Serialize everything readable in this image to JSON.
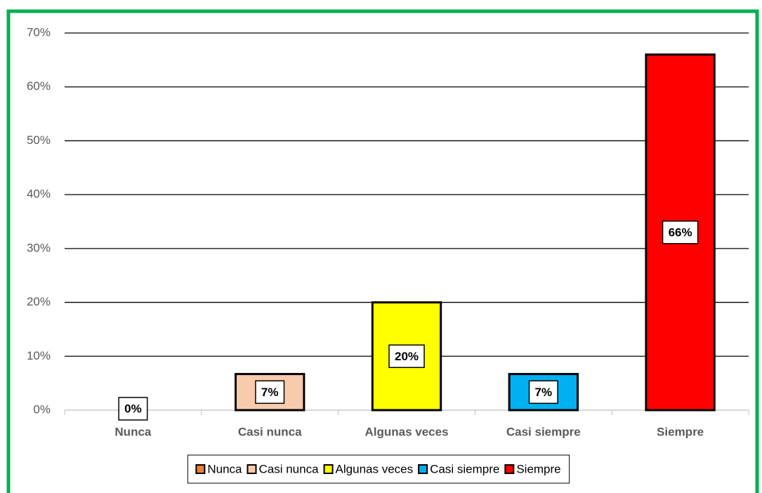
{
  "chart_data": {
    "type": "bar",
    "categories": [
      "Nunca",
      "Casi nunca",
      "Algunas veces",
      "Casi siempre",
      "Siempre"
    ],
    "values": [
      0,
      6.7,
      20,
      6.7,
      66
    ],
    "value_labels": [
      "0%",
      "7%",
      "20%",
      "7%",
      "66%"
    ],
    "colors": [
      "#ed7d31",
      "#f8cbad",
      "#ffff00",
      "#00b0f0",
      "#ff0000"
    ],
    "ylim": [
      0,
      70
    ],
    "yticks": [
      {
        "value": 0,
        "label": "0%"
      },
      {
        "value": 10,
        "label": "10%"
      },
      {
        "value": 20,
        "label": "20%"
      },
      {
        "value": 30,
        "label": "30%"
      },
      {
        "value": 40,
        "label": "40%"
      },
      {
        "value": 50,
        "label": "50%"
      },
      {
        "value": 60,
        "label": "60%"
      },
      {
        "value": 70,
        "label": "70%"
      }
    ],
    "grid": true,
    "legend": "bottom"
  }
}
